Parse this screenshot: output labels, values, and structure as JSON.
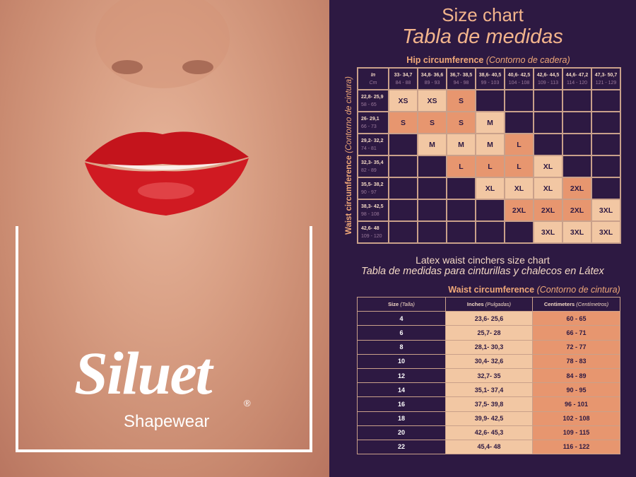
{
  "brand": {
    "name": "Siluet",
    "registered": "®",
    "tagline": "Shapewear"
  },
  "title": {
    "en": "Size chart",
    "es": "Tabla de medidas"
  },
  "hip_chart": {
    "hip_label": "Hip circumference",
    "hip_label_es": "(Contorno de cadera)",
    "waist_label": "Waist circumference",
    "waist_label_es": "(Contorno de cintura)",
    "unit_in": "In",
    "unit_cm": "Cm",
    "hip_in": [
      "33- 34,7",
      "34,8- 36,6",
      "36,7- 38,5",
      "38,6- 40,5",
      "40,6- 42,5",
      "42,6- 44,5",
      "44,6- 47,2",
      "47,3- 50,7"
    ],
    "hip_cm": [
      "84 - 88",
      "89 - 93",
      "94 - 98",
      "99 - 103",
      "104 - 108",
      "109 - 113",
      "114 - 120",
      "121 - 129"
    ],
    "rows": [
      {
        "in": "22,8- 25,9",
        "cm": "58 - 65",
        "cells": [
          "XS",
          "XS",
          "S",
          "",
          "",
          "",
          "",
          ""
        ],
        "tones": [
          "L",
          "L",
          "S",
          "",
          "",
          "",
          "",
          ""
        ]
      },
      {
        "in": "26- 29,1",
        "cm": "66 - 73",
        "cells": [
          "S",
          "S",
          "S",
          "M",
          "",
          "",
          "",
          ""
        ],
        "tones": [
          "S",
          "S",
          "S",
          "L",
          "",
          "",
          "",
          ""
        ]
      },
      {
        "in": "29,2- 32,2",
        "cm": "74 - 81",
        "cells": [
          "",
          "M",
          "M",
          "M",
          "L",
          "",
          "",
          ""
        ],
        "tones": [
          "",
          "L",
          "L",
          "L",
          "S",
          "",
          "",
          ""
        ]
      },
      {
        "in": "32,3- 35,4",
        "cm": "82 - 89",
        "cells": [
          "",
          "",
          "L",
          "L",
          "L",
          "XL",
          "",
          ""
        ],
        "tones": [
          "",
          "",
          "S",
          "S",
          "S",
          "L",
          "",
          ""
        ]
      },
      {
        "in": "35,5- 38,2",
        "cm": "90 - 97",
        "cells": [
          "",
          "",
          "",
          "XL",
          "XL",
          "XL",
          "2XL",
          ""
        ],
        "tones": [
          "",
          "",
          "",
          "L",
          "L",
          "L",
          "S",
          ""
        ]
      },
      {
        "in": "38,3- 42,5",
        "cm": "98 - 108",
        "cells": [
          "",
          "",
          "",
          "",
          "2XL",
          "2XL",
          "2XL",
          "3XL"
        ],
        "tones": [
          "",
          "",
          "",
          "",
          "S",
          "S",
          "S",
          "L"
        ]
      },
      {
        "in": "42,6- 48",
        "cm": "109 - 120",
        "cells": [
          "",
          "",
          "",
          "",
          "",
          "3XL",
          "3XL",
          "3XL"
        ],
        "tones": [
          "",
          "",
          "",
          "",
          "",
          "L",
          "L",
          "L"
        ]
      }
    ]
  },
  "latex_chart": {
    "title_en": "Latex waist cinchers size chart",
    "title_es": "Tabla de medidas para cinturillas y chalecos en Látex",
    "section": "Waist circumference",
    "section_es": "(Contorno de cintura)",
    "headers": [
      {
        "en": "Size",
        "es": "(Talla)"
      },
      {
        "en": "Inches",
        "es": "(Pulgadas)"
      },
      {
        "en": "Centimeters",
        "es": "(Centímetros)"
      }
    ],
    "rows": [
      [
        "4",
        "23,6- 25,6",
        "60 - 65"
      ],
      [
        "6",
        "25,7- 28",
        "66 - 71"
      ],
      [
        "8",
        "28,1- 30,3",
        "72 - 77"
      ],
      [
        "10",
        "30,4- 32,6",
        "78 - 83"
      ],
      [
        "12",
        "32,7- 35",
        "84 - 89"
      ],
      [
        "14",
        "35,1- 37,4",
        "90 - 95"
      ],
      [
        "16",
        "37,5- 39,8",
        "96 - 101"
      ],
      [
        "18",
        "39,9- 42,5",
        "102 - 108"
      ],
      [
        "20",
        "42,6- 45,3",
        "109 - 115"
      ],
      [
        "22",
        "45,4- 48",
        "116 - 122"
      ]
    ]
  },
  "colors": {
    "background": "#2d1942",
    "light": "#f2c7a3",
    "salmon": "#e7966f",
    "accent": "#f2b48c"
  }
}
